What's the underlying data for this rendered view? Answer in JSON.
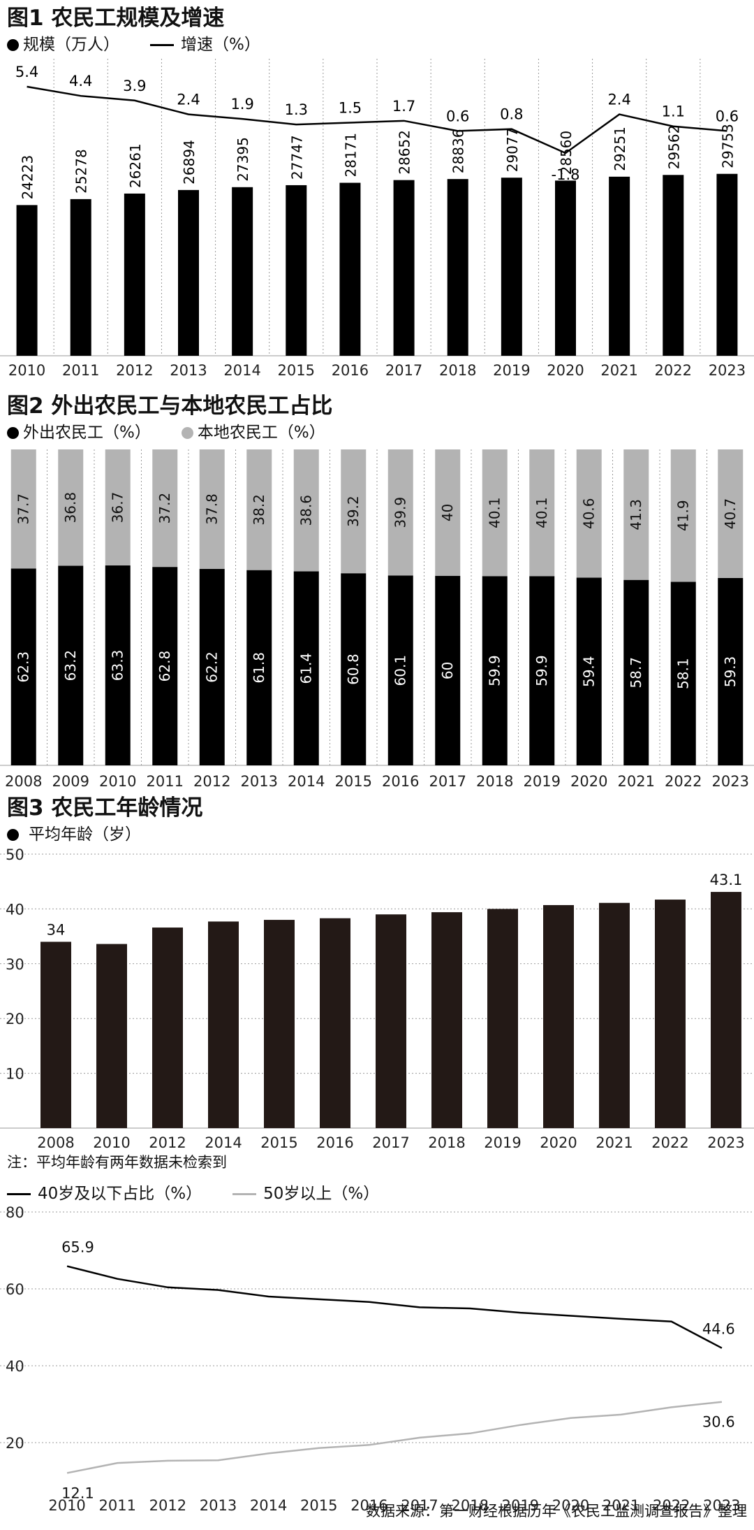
{
  "colors": {
    "black": "#000000",
    "dark": "#231916",
    "gray": "#b3b3b3",
    "grid": "#999999"
  },
  "fig1": {
    "title": "图1 农民工规模及增速",
    "legend_bar": "规模（万人）",
    "legend_line": "增速（%）",
    "chart_data": {
      "type": "bar",
      "categories": [
        "2010",
        "2011",
        "2012",
        "2013",
        "2014",
        "2015",
        "2016",
        "2017",
        "2018",
        "2019",
        "2020",
        "2021",
        "2022",
        "2023"
      ],
      "series": [
        {
          "name": "规模（万人）",
          "values": [
            24223,
            25278,
            26261,
            26894,
            27395,
            27747,
            28171,
            28652,
            28836,
            29077,
            28560,
            29251,
            29562,
            29753
          ]
        },
        {
          "name": "增速（%）",
          "type": "line",
          "values": [
            5.4,
            4.4,
            3.9,
            2.4,
            1.9,
            1.3,
            1.5,
            1.7,
            0.6,
            0.8,
            -1.8,
            2.4,
            1.1,
            0.6
          ]
        }
      ]
    }
  },
  "fig2": {
    "title": "图2 外出农民工与本地农民工占比",
    "legend_a": "外出农民工（%）",
    "legend_b": "本地农民工（%）",
    "chart_data": {
      "type": "bar",
      "stacked": true,
      "categories": [
        "2008",
        "2009",
        "2010",
        "2011",
        "2012",
        "2013",
        "2014",
        "2015",
        "2016",
        "2017",
        "2018",
        "2019",
        "2020",
        "2021",
        "2022",
        "2023"
      ],
      "series": [
        {
          "name": "外出农民工（%）",
          "values": [
            62.3,
            63.2,
            63.3,
            62.8,
            62.2,
            61.8,
            61.4,
            60.8,
            60.1,
            60,
            59.9,
            59.9,
            59.4,
            58.7,
            58.1,
            59.3
          ]
        },
        {
          "name": "本地农民工（%）",
          "values": [
            37.7,
            36.8,
            36.7,
            37.2,
            37.8,
            38.2,
            38.6,
            39.2,
            39.9,
            40,
            40.1,
            40.1,
            40.6,
            41.3,
            41.9,
            40.7
          ]
        }
      ]
    }
  },
  "fig3": {
    "title": "图3 农民工年龄情况",
    "legend": "平均年龄（岁）",
    "note": "注：平均年龄有两年数据未检索到",
    "chart_data": {
      "type": "bar",
      "categories": [
        "2008",
        "2010",
        "2012",
        "2014",
        "2015",
        "2016",
        "2017",
        "2018",
        "2019",
        "2020",
        "2021",
        "2022",
        "2023"
      ],
      "values": [
        34,
        33.6,
        36.6,
        37.7,
        38.0,
        38.3,
        39.0,
        39.4,
        40.0,
        40.7,
        41.1,
        41.7,
        43.1
      ],
      "ylim": [
        0,
        50
      ],
      "yticks": [
        10,
        20,
        30,
        40,
        50
      ],
      "labeled": {
        "0": "34",
        "12": "43.1"
      }
    }
  },
  "fig4": {
    "legend_a": "40岁及以下占比（%）",
    "legend_b": "50岁以上（%）",
    "chart_data": {
      "type": "line",
      "x": [
        "2010",
        "2011",
        "2012",
        "2013",
        "2014",
        "2015",
        "2016",
        "2017",
        "2018",
        "2019",
        "2020",
        "2021",
        "2022",
        "2023"
      ],
      "ylim": [
        10,
        80
      ],
      "yticks": [
        20,
        40,
        60,
        80
      ],
      "series": [
        {
          "name": "40岁及以下占比（%）",
          "values": [
            65.9,
            62.6,
            60.4,
            59.7,
            58.0,
            57.3,
            56.6,
            55.2,
            54.9,
            53.8,
            53.0,
            52.2,
            51.5,
            44.6
          ]
        },
        {
          "name": "50岁以上（%）",
          "values": [
            12.1,
            14.7,
            15.3,
            15.4,
            17.2,
            18.6,
            19.4,
            21.3,
            22.4,
            24.6,
            26.4,
            27.3,
            29.2,
            30.6
          ]
        }
      ],
      "labeled": {
        "first": [
          "65.9",
          "12.1"
        ],
        "last": [
          "44.6",
          "30.6"
        ]
      }
    }
  },
  "source": "数据来源：第一财经根据历年《农民工监测调查报告》整理"
}
